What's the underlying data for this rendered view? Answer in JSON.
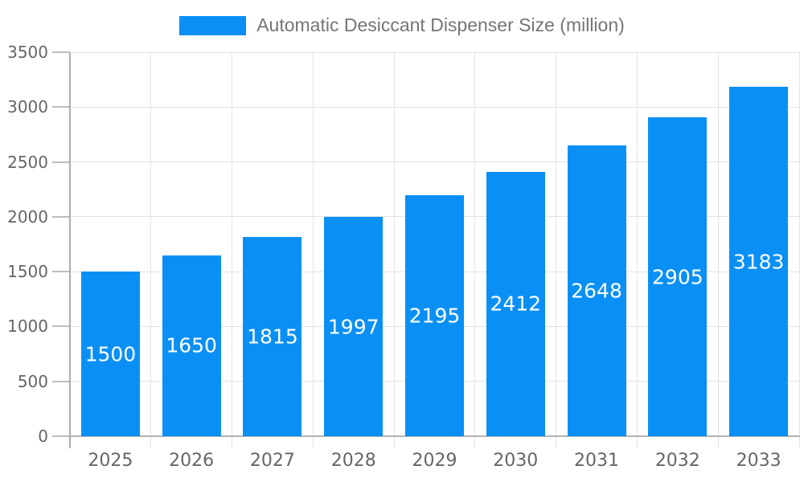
{
  "legend": {
    "label": "Automatic Desiccant Dispenser Size (million)"
  },
  "colors": {
    "bar": "#0a90f5",
    "grid_line": "#e3e3e3",
    "axis_line": "#adadad",
    "tick_mark": "#bdbdbd",
    "tick_text": "#666666",
    "legend_text": "#757575",
    "data_label_text": "#ffffff",
    "background": "#ffffff"
  },
  "chart_data": {
    "type": "bar",
    "title": "Automatic Desiccant Dispenser Size (million)",
    "legend_entries": [
      "Automatic Desiccant Dispenser Size (million)"
    ],
    "legend_position": "top-center",
    "categories": [
      "2025",
      "2026",
      "2027",
      "2028",
      "2029",
      "2030",
      "2031",
      "2032",
      "2033"
    ],
    "series": [
      {
        "name": "Automatic Desiccant Dispenser Size (million)",
        "values": [
          1500,
          1650,
          1815,
          1997,
          2195,
          2412,
          2648,
          2905,
          3183
        ]
      }
    ],
    "data_labels": {
      "visible": true,
      "position": "inside-center",
      "color": "#ffffff"
    },
    "xlabel": "",
    "ylabel": "",
    "ylim": [
      0,
      3500
    ],
    "yticks": [
      0,
      500,
      1000,
      1500,
      2000,
      2500,
      3000,
      3500
    ],
    "grid": true,
    "grid_horizontal": true,
    "grid_vertical": true
  }
}
